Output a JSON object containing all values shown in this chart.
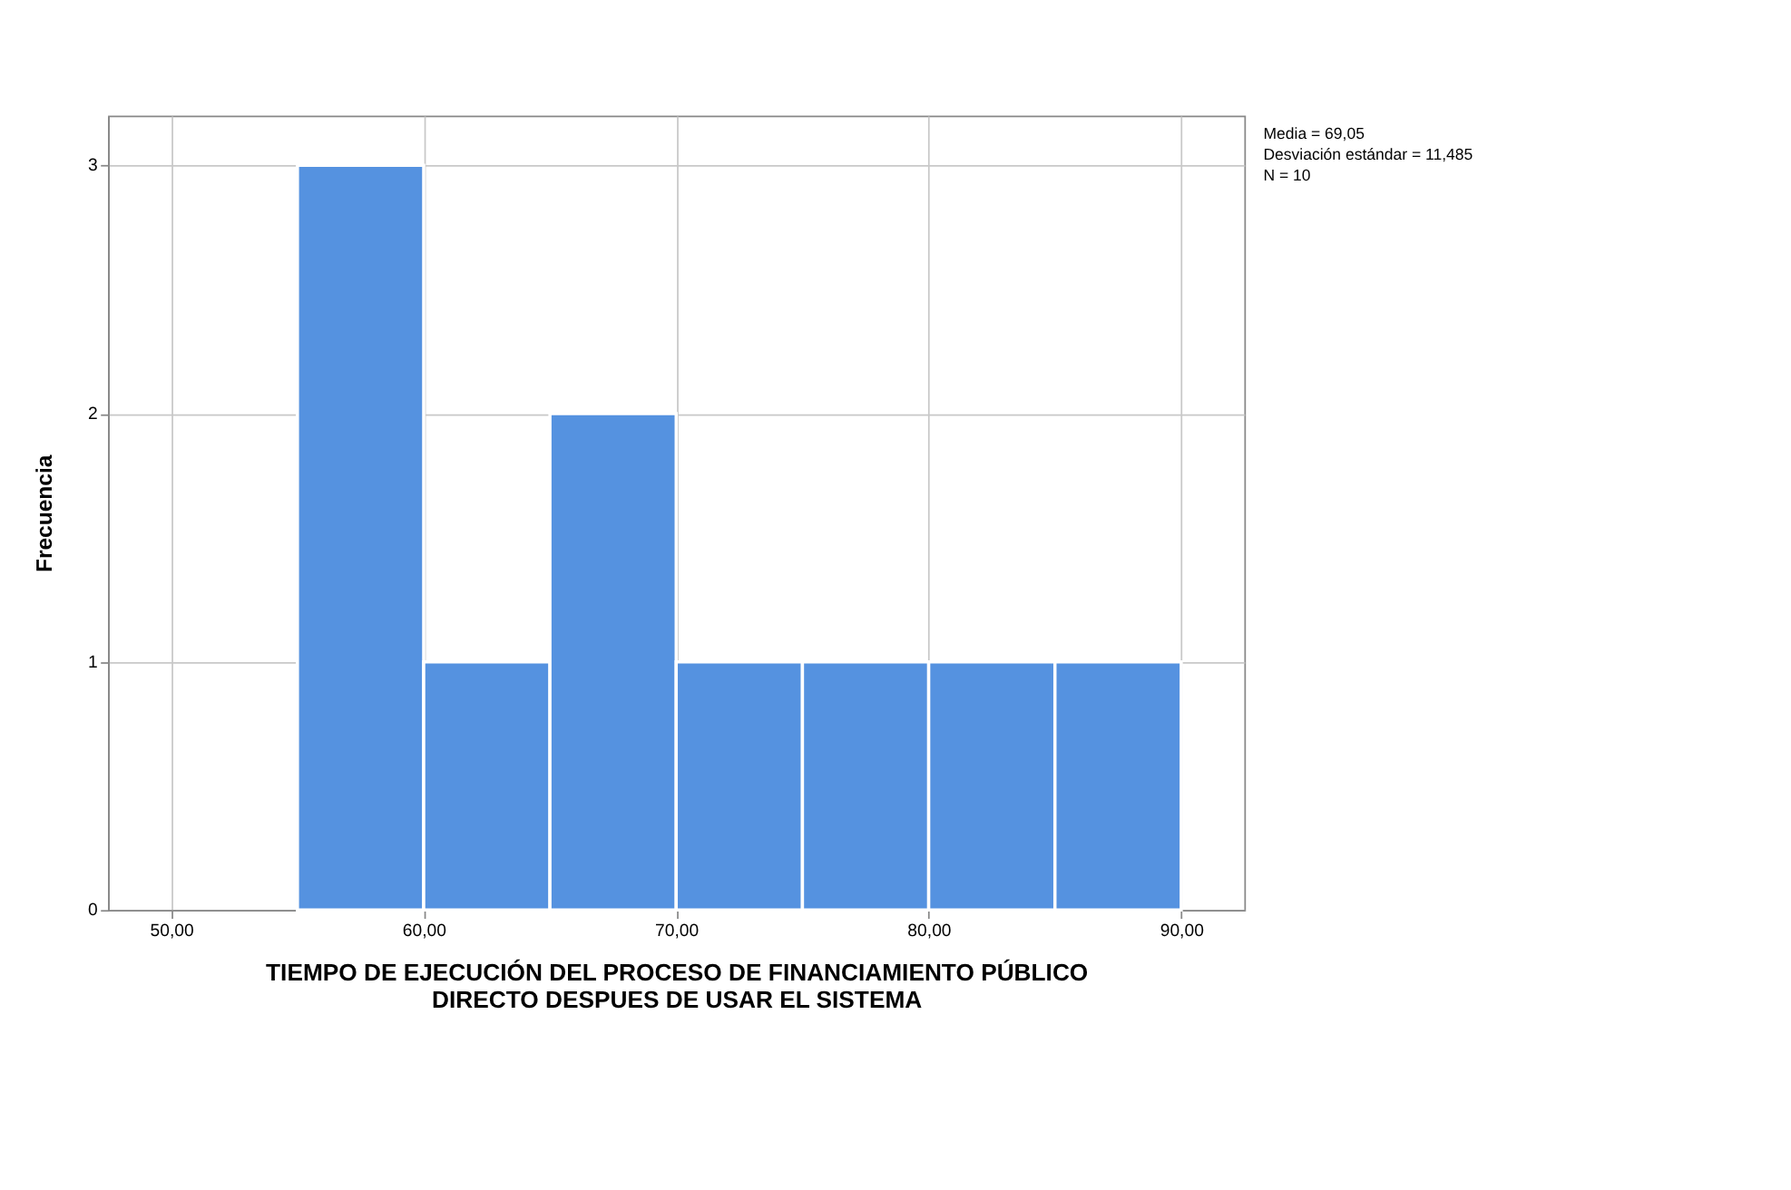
{
  "chart_data": {
    "type": "histogram",
    "xlabel": "TIEMPO DE EJECUCIÓN DEL PROCESO DE FINANCIAMIENTO PÚBLICO\nDIRECTO DESPUES DE USAR EL SISTEMA",
    "ylabel": "Frecuencia",
    "bins": [
      55,
      60,
      65,
      70,
      75,
      80,
      85,
      90
    ],
    "values": [
      3,
      1,
      2,
      1,
      1,
      1,
      1
    ],
    "color": "#5592e0",
    "xlim": [
      47.5,
      92.5
    ],
    "xticks": [
      {
        "value": 50,
        "label": "50,00"
      },
      {
        "value": 60,
        "label": "60,00"
      },
      {
        "value": 70,
        "label": "70,00"
      },
      {
        "value": 80,
        "label": "80,00"
      },
      {
        "value": 90,
        "label": "90,00"
      }
    ],
    "ylim": [
      0,
      3.2
    ],
    "yticks": [
      0,
      1,
      2,
      3
    ],
    "grid": true,
    "annotations": [
      "Media = 69,05",
      "Desviación estándar = 11,485",
      "N = 10"
    ]
  }
}
